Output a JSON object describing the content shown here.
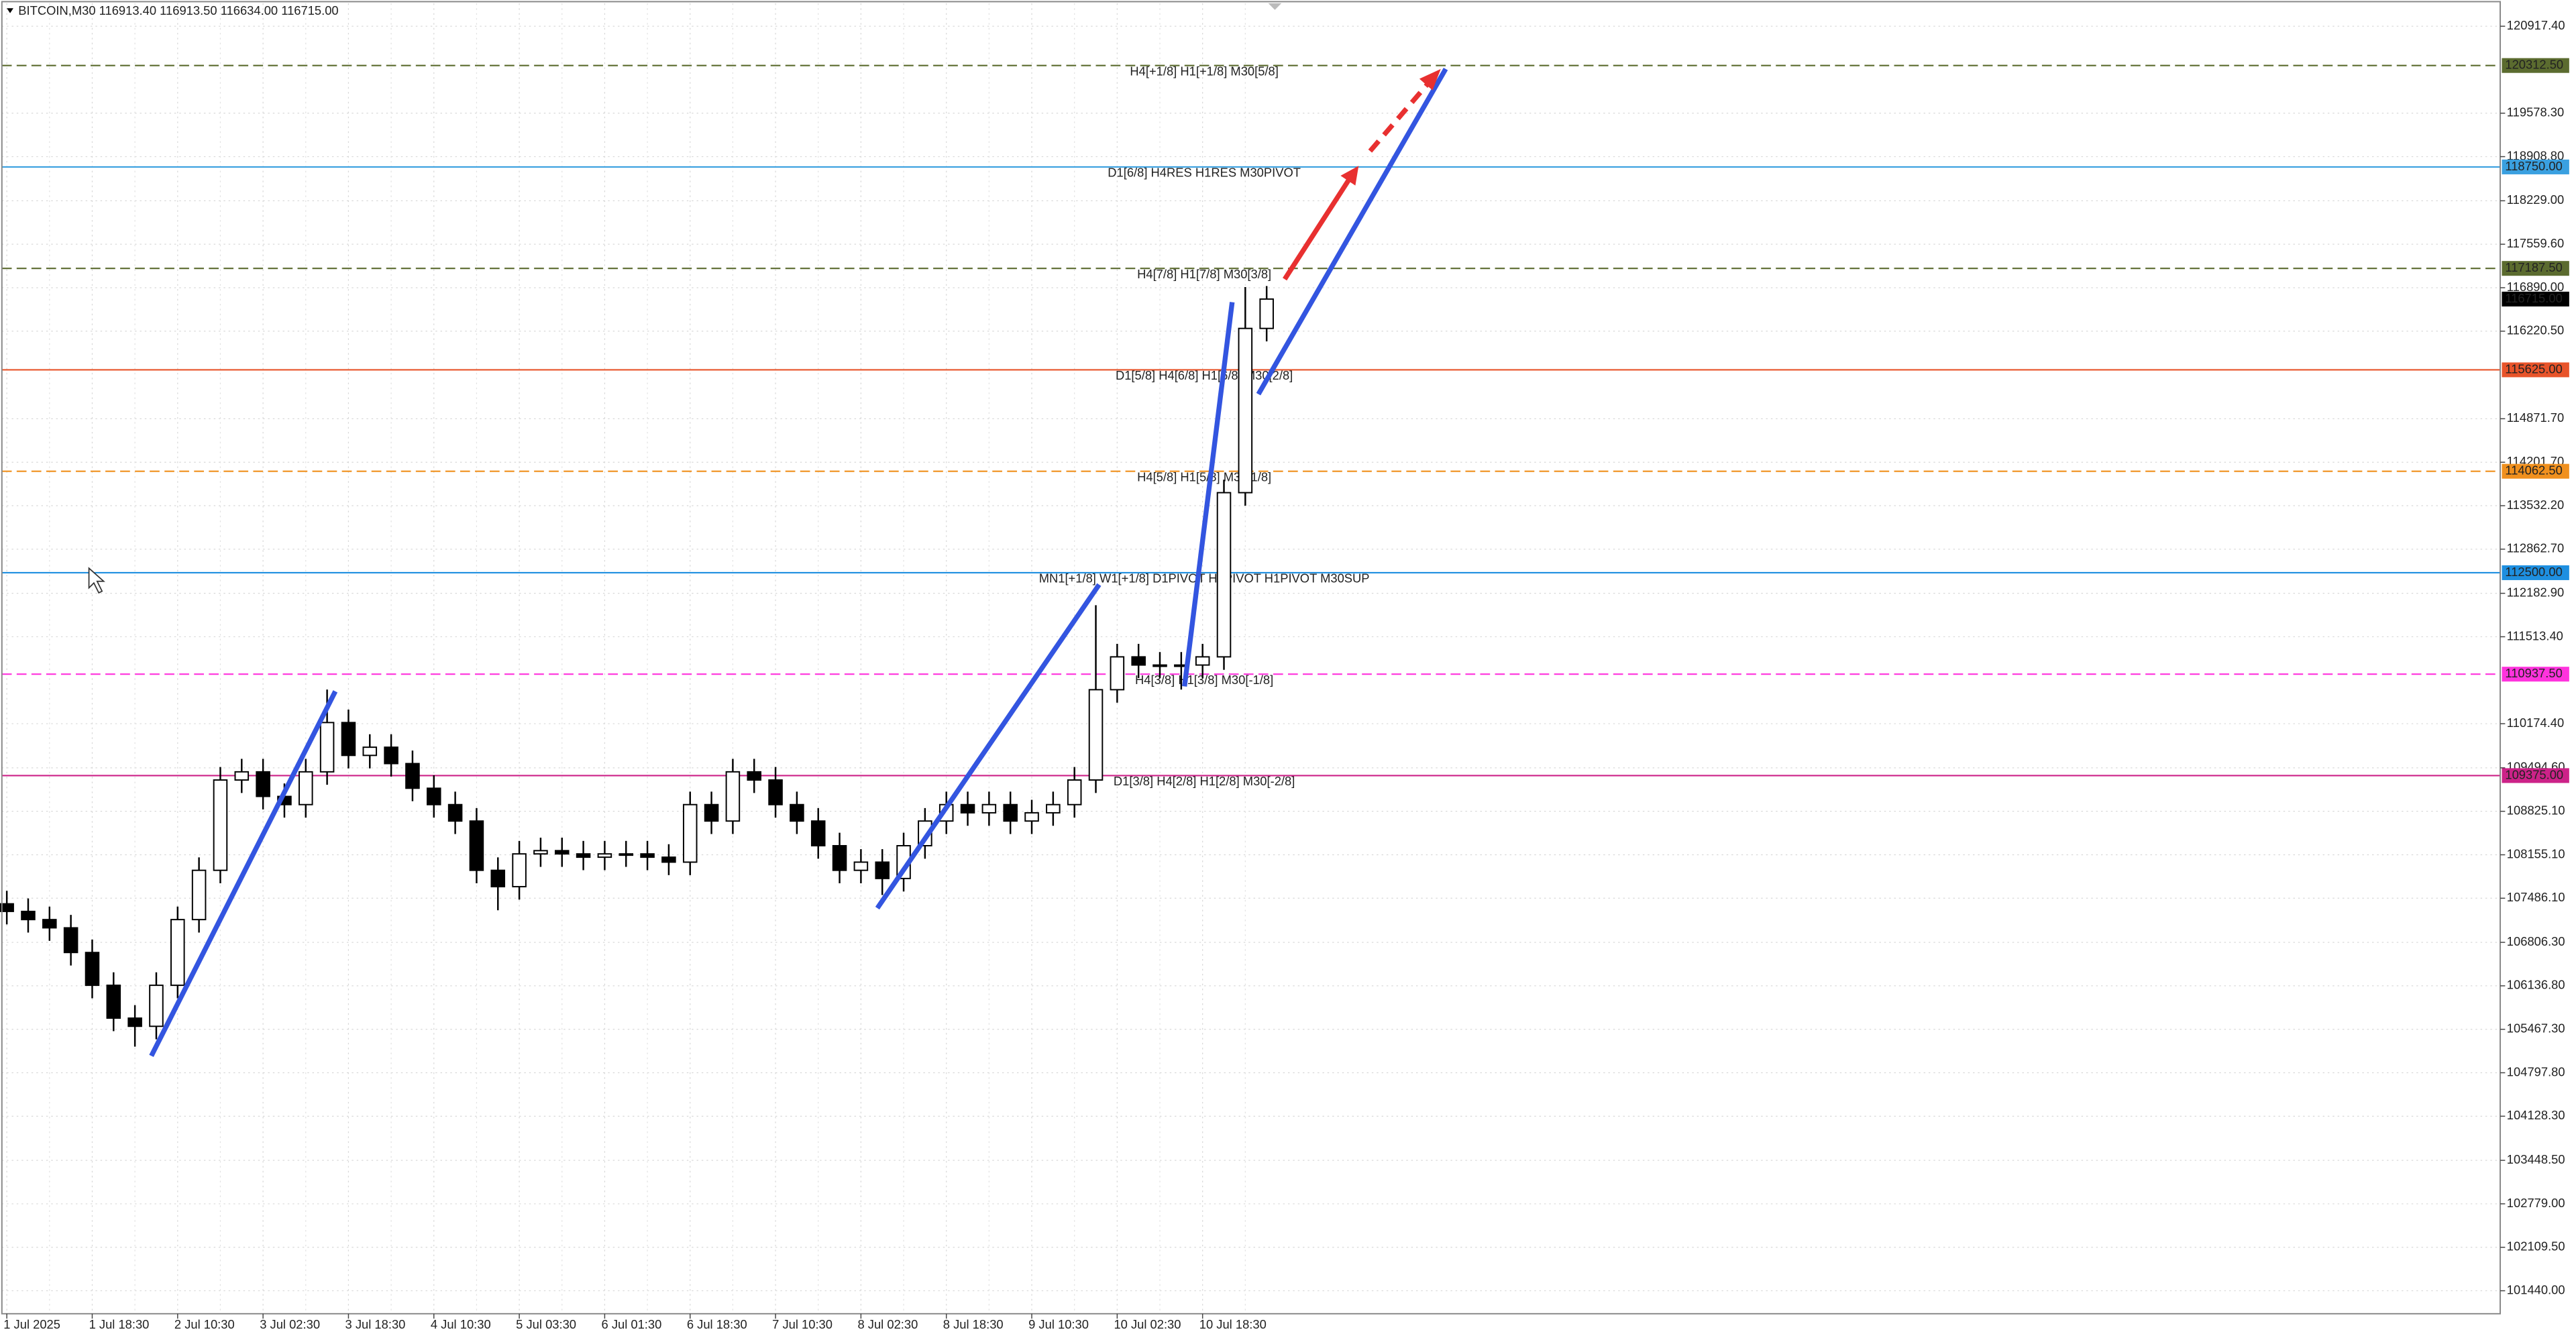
{
  "chart_data": {
    "type": "candlestick",
    "title": "BITCOIN,M30  116913.40 116913.50 116634.00 116715.00",
    "categories": [
      "1 Jul 2025",
      null,
      null,
      null,
      "1 Jul 18:30",
      null,
      null,
      null,
      "2 Jul 10:30",
      null,
      null,
      null,
      "3 Jul 02:30",
      null,
      null,
      null,
      "3 Jul 18:30",
      null,
      null,
      null,
      "4 Jul 10:30",
      null,
      null,
      null,
      "5 Jul 03:30",
      null,
      null,
      null,
      "6 Jul 01:30",
      null,
      null,
      null,
      "6 Jul 18:30",
      null,
      null,
      null,
      "7 Jul 10:30",
      null,
      null,
      null,
      "8 Jul 02:30",
      null,
      null,
      null,
      "8 Jul 18:30",
      null,
      null,
      null,
      "9 Jul 10:30",
      null,
      null,
      null,
      "10 Jul 02:30",
      null,
      null,
      null,
      "10 Jul 18:30",
      null,
      null,
      null
    ],
    "open": [
      107400,
      107283,
      107157,
      107030,
      106650,
      106145,
      105639,
      105513,
      106145,
      107157,
      107916,
      109307,
      109433,
      109054,
      108928,
      109433,
      110192,
      109686,
      109812,
      109560,
      109180,
      108928,
      108675,
      107916,
      107664,
      108169,
      108219,
      108169,
      108118,
      108169,
      108169,
      108118,
      108042,
      108928,
      108675,
      109433,
      109307,
      108928,
      108675,
      108295,
      107916,
      108042,
      107790,
      108295,
      108675,
      108928,
      108802,
      108928,
      108675,
      108802,
      108928,
      109307,
      110698,
      111204,
      111078,
      111078,
      111078,
      111204,
      113733,
      116263
    ],
    "high": [
      107600,
      107483,
      107357,
      107230,
      106850,
      106345,
      105839,
      106345,
      107357,
      108116,
      109507,
      109633,
      109633,
      109254,
      109633,
      110700,
      110392,
      110012,
      110012,
      109760,
      109380,
      109128,
      108875,
      108116,
      108369,
      108419,
      108419,
      108369,
      108369,
      108369,
      108369,
      108318,
      109128,
      109128,
      109633,
      109633,
      109507,
      109128,
      108875,
      108495,
      108242,
      108242,
      108495,
      108875,
      109128,
      109128,
      109128,
      109128,
      109002,
      109128,
      109507,
      112000,
      111404,
      111404,
      111278,
      111278,
      111404,
      113933,
      116900,
      116915
    ],
    "low": [
      107083,
      106957,
      106830,
      106450,
      105945,
      105439,
      105200,
      105313,
      105945,
      106957,
      107716,
      109107,
      108854,
      108728,
      108728,
      109233,
      109486,
      109486,
      109360,
      108980,
      108728,
      108475,
      107716,
      107300,
      107464,
      107969,
      107969,
      107918,
      107918,
      107969,
      107918,
      107842,
      107842,
      108475,
      108475,
      109107,
      108728,
      108475,
      108095,
      107716,
      107716,
      107536,
      107590,
      108095,
      108475,
      108602,
      108602,
      108475,
      108475,
      108602,
      108728,
      109107,
      110498,
      110878,
      110878,
      110700,
      110878,
      111004,
      113533,
      116063
    ],
    "close": [
      107283,
      107157,
      107030,
      106650,
      106145,
      105639,
      105513,
      106145,
      107157,
      107916,
      109307,
      109433,
      109054,
      108928,
      109433,
      110192,
      109686,
      109812,
      109560,
      109180,
      108928,
      108675,
      107916,
      107664,
      108169,
      108219,
      108169,
      108118,
      108169,
      108169,
      108118,
      108042,
      108928,
      108675,
      109433,
      109307,
      108928,
      108675,
      108295,
      107916,
      108042,
      107790,
      108295,
      108675,
      108928,
      108802,
      108928,
      108675,
      108802,
      108928,
      109307,
      110698,
      111204,
      111078,
      111078,
      111078,
      111204,
      113733,
      116263,
      116715
    ],
    "ylim": [
      101086,
      121271
    ],
    "yticks": [
      {
        "value": 120917.4,
        "label": "120917.40"
      },
      {
        "value": 119578.3,
        "label": "119578.30"
      },
      {
        "value": 118908.8,
        "label": "118908.80"
      },
      {
        "value": 118229,
        "label": "118229.00"
      },
      {
        "value": 117559.6,
        "label": "117559.60"
      },
      {
        "value": 116890,
        "label": "116890.00"
      },
      {
        "value": 116220.5,
        "label": "116220.50"
      },
      {
        "value": 114871.7,
        "label": "114871.70"
      },
      {
        "value": 114201.7,
        "label": "114201.70"
      },
      {
        "value": 113532.2,
        "label": "113532.20"
      },
      {
        "value": 112862.7,
        "label": "112862.70"
      },
      {
        "value": 112182.9,
        "label": "112182.90"
      },
      {
        "value": 111513.4,
        "label": "111513.40"
      },
      {
        "value": 110174.4,
        "label": "110174.40"
      },
      {
        "value": 109494.6,
        "label": "109494.60"
      },
      {
        "value": 108825.1,
        "label": "108825.10"
      },
      {
        "value": 108155.1,
        "label": "108155.10"
      },
      {
        "value": 107486.1,
        "label": "107486.10"
      },
      {
        "value": 106806.3,
        "label": "106806.30"
      },
      {
        "value": 106136.8,
        "label": "106136.80"
      },
      {
        "value": 105467.3,
        "label": "105467.30"
      },
      {
        "value": 104797.8,
        "label": "104797.80"
      },
      {
        "value": 104128.3,
        "label": "104128.30"
      },
      {
        "value": 103448.5,
        "label": "103448.50"
      },
      {
        "value": 102779,
        "label": "102779.00"
      },
      {
        "value": 102109.5,
        "label": "102109.50"
      },
      {
        "value": 101440,
        "label": "101440.00"
      }
    ],
    "grid": true,
    "levels": [
      {
        "value": 120312.5,
        "label": "120312.50",
        "text": "H4[+1/8] H1[+1/8] M30[5/8]",
        "color": "#5b6b2f",
        "dashed": true
      },
      {
        "value": 118750,
        "label": "118750.00",
        "text": "D1[6/8] H4RES H1RES M30PIVOT",
        "color": "#3aa0e0",
        "dashed": false
      },
      {
        "value": 117187.5,
        "label": "117187.50",
        "text": "H4[7/8] H1[7/8] M30[3/8]",
        "color": "#5b6b2f",
        "dashed": true
      },
      {
        "value": 116715,
        "label": "116715.00",
        "color": "#000000",
        "dashed": false,
        "current": true
      },
      {
        "value": 115625,
        "label": "115625.00",
        "text": "D1[5/8] H4[6/8] H1[6/8] M30[2/8]",
        "color": "#e8542a",
        "dashed": false
      },
      {
        "value": 114062.5,
        "label": "114062.50",
        "text": "H4[5/8] H1[5/8] M30[1/8]",
        "color": "#f0901e",
        "dashed": true
      },
      {
        "value": 112500,
        "label": "112500.00",
        "text": "MN1[+1/8] W1[+1/8] D1PIVOT H4PIVOT H1PIVOT M30SUP",
        "color": "#1e8fe0",
        "dashed": false
      },
      {
        "value": 110937.5,
        "label": "110937.50",
        "text": "H4[3/8] H1[3/8] M30[-1/8]",
        "color": "#ff33dd",
        "dashed": true
      },
      {
        "value": 109375,
        "label": "109375.00",
        "text": "D1[3/8] H4[2/8] H1[2/8] M30[-2/8]",
        "color": "#cc2288",
        "dashed": false
      }
    ]
  }
}
